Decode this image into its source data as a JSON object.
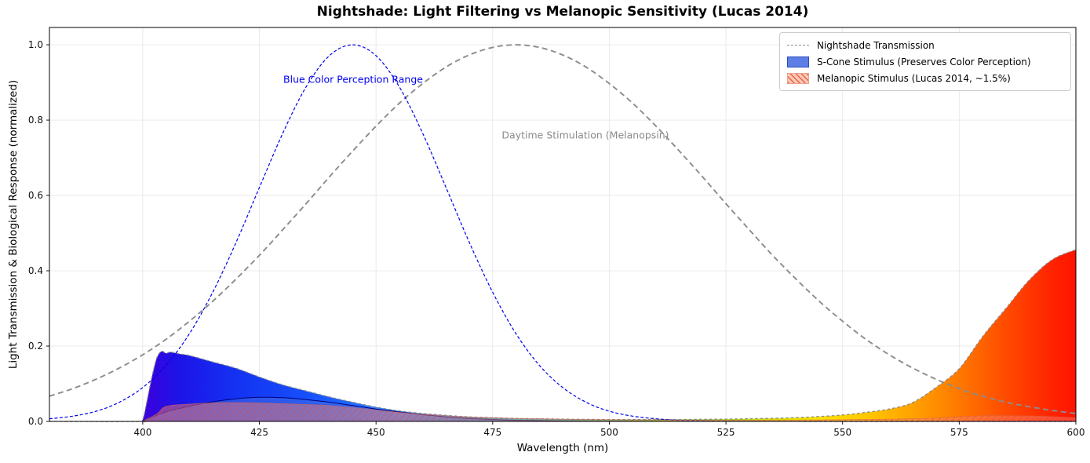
{
  "title": "Nightshade: Light Filtering vs Melanopic Sensitivity (Lucas 2014)",
  "axes": {
    "x_label": "Wavelength (nm)",
    "y_label": "Light Transmission & Biological Response (normalized)",
    "x_ticks": [
      400,
      425,
      450,
      475,
      500,
      525,
      550,
      575,
      600
    ],
    "y_ticks": [
      "0.0",
      "0.2",
      "0.4",
      "0.6",
      "0.8",
      "1.0"
    ],
    "grid": true
  },
  "legend": {
    "position": "upper right",
    "items": [
      {
        "label": "Nightshade Transmission",
        "swatch": "gray-dashed-line",
        "color": "#8c8c8c"
      },
      {
        "label": "S-Cone Stimulus (Preserves Color Perception)",
        "swatch": "blue-filled-patch",
        "color": "#4169e1",
        "edge": "#2b4bbf"
      },
      {
        "label": "Melanopic Stimulus (Lucas 2014, ~1.5%)",
        "swatch": "salmon-hatched-patch",
        "color": "#ffc9b5",
        "hatch": "#e8604c"
      }
    ]
  },
  "annotations": [
    {
      "text": "Blue Color Perception Range",
      "color": "#0000ee",
      "x_nm": 445,
      "y": 0.9
    },
    {
      "text": "Daytime Stimulation (Melanopsin)",
      "color": "#8a8a8a",
      "x_nm": 495,
      "y": 0.76
    }
  ],
  "chart_data": {
    "type": "line",
    "title": "Nightshade: Light Filtering vs Melanopic Sensitivity (Lucas 2014)",
    "xlabel": "Wavelength (nm)",
    "ylabel": "Light Transmission & Biological Response (normalized)",
    "xlim": [
      380,
      600
    ],
    "ylim": [
      0,
      1.046
    ],
    "grid": true,
    "series": [
      {
        "name": "Nightshade Transmission",
        "style": "dashed",
        "color": "#8a8a8a",
        "width": 1.3,
        "dash": "3.5,3",
        "fill": "spectral-gradient",
        "points": [
          [
            380,
            0
          ],
          [
            399,
            0
          ],
          [
            400,
            0.005
          ],
          [
            401,
            0.06
          ],
          [
            402,
            0.12
          ],
          [
            403,
            0.168
          ],
          [
            404,
            0.186
          ],
          [
            405,
            0.181
          ],
          [
            406,
            0.184
          ],
          [
            408,
            0.179
          ],
          [
            410,
            0.175
          ],
          [
            415,
            0.158
          ],
          [
            420,
            0.141
          ],
          [
            425,
            0.118
          ],
          [
            430,
            0.097
          ],
          [
            435,
            0.081
          ],
          [
            440,
            0.065
          ],
          [
            445,
            0.051
          ],
          [
            450,
            0.038
          ],
          [
            455,
            0.028
          ],
          [
            460,
            0.021
          ],
          [
            465,
            0.016
          ],
          [
            470,
            0.012
          ],
          [
            475,
            0.01
          ],
          [
            480,
            0.008
          ],
          [
            485,
            0.007
          ],
          [
            490,
            0.006
          ],
          [
            495,
            0.0055
          ],
          [
            500,
            0.005
          ],
          [
            510,
            0.005
          ],
          [
            520,
            0.0055
          ],
          [
            530,
            0.007
          ],
          [
            540,
            0.01
          ],
          [
            545,
            0.013
          ],
          [
            550,
            0.017
          ],
          [
            555,
            0.024
          ],
          [
            560,
            0.033
          ],
          [
            565,
            0.05
          ],
          [
            570,
            0.09
          ],
          [
            575,
            0.14
          ],
          [
            580,
            0.225
          ],
          [
            585,
            0.3
          ],
          [
            590,
            0.375
          ],
          [
            595,
            0.43
          ],
          [
            600,
            0.456
          ]
        ]
      },
      {
        "name": "S-Cone Sensitivity (Blue Color Perception Range)",
        "style": "dashed",
        "color": "#0000ee",
        "width": 1.2,
        "dash": "4,2.5",
        "points": [
          [
            380,
            0.007
          ],
          [
            385,
            0.014
          ],
          [
            390,
            0.027
          ],
          [
            395,
            0.051
          ],
          [
            400,
            0.09
          ],
          [
            405,
            0.149
          ],
          [
            410,
            0.233
          ],
          [
            415,
            0.343
          ],
          [
            420,
            0.475
          ],
          [
            425,
            0.621
          ],
          [
            430,
            0.765
          ],
          [
            435,
            0.888
          ],
          [
            440,
            0.971
          ],
          [
            445,
            1.0
          ],
          [
            450,
            0.971
          ],
          [
            455,
            0.888
          ],
          [
            460,
            0.765
          ],
          [
            465,
            0.621
          ],
          [
            470,
            0.475
          ],
          [
            475,
            0.343
          ],
          [
            480,
            0.233
          ],
          [
            485,
            0.149
          ],
          [
            490,
            0.09
          ],
          [
            495,
            0.051
          ],
          [
            500,
            0.027
          ],
          [
            505,
            0.014
          ],
          [
            510,
            0.007
          ],
          [
            515,
            0.003
          ],
          [
            520,
            0.0015
          ],
          [
            525,
            0.0007
          ],
          [
            530,
            0.0003
          ],
          [
            545,
            0.0001
          ],
          [
            600,
            0
          ]
        ]
      },
      {
        "name": "Melanopsin Sensitivity (Daytime Stimulation)",
        "style": "dashed",
        "color": "#8c8c8c",
        "width": 1.9,
        "dash": "7,4.5",
        "points": [
          [
            380,
            0.067
          ],
          [
            385,
            0.087
          ],
          [
            390,
            0.112
          ],
          [
            395,
            0.142
          ],
          [
            400,
            0.177
          ],
          [
            405,
            0.218
          ],
          [
            410,
            0.266
          ],
          [
            415,
            0.319
          ],
          [
            420,
            0.378
          ],
          [
            425,
            0.441
          ],
          [
            430,
            0.509
          ],
          [
            435,
            0.578
          ],
          [
            440,
            0.649
          ],
          [
            445,
            0.718
          ],
          [
            450,
            0.784
          ],
          [
            455,
            0.845
          ],
          [
            460,
            0.897
          ],
          [
            465,
            0.941
          ],
          [
            470,
            0.973
          ],
          [
            475,
            0.993
          ],
          [
            480,
            1.0
          ],
          [
            485,
            0.993
          ],
          [
            490,
            0.973
          ],
          [
            495,
            0.941
          ],
          [
            500,
            0.897
          ],
          [
            505,
            0.845
          ],
          [
            510,
            0.784
          ],
          [
            515,
            0.718
          ],
          [
            520,
            0.649
          ],
          [
            525,
            0.578
          ],
          [
            530,
            0.509
          ],
          [
            535,
            0.441
          ],
          [
            540,
            0.378
          ],
          [
            545,
            0.319
          ],
          [
            550,
            0.266
          ],
          [
            555,
            0.218
          ],
          [
            560,
            0.177
          ],
          [
            565,
            0.142
          ],
          [
            570,
            0.112
          ],
          [
            575,
            0.087
          ],
          [
            580,
            0.067
          ],
          [
            585,
            0.051
          ],
          [
            590,
            0.039
          ],
          [
            595,
            0.029
          ],
          [
            600,
            0.021
          ]
        ]
      },
      {
        "name": "S-Cone Stimulus (Preserves Color Perception)",
        "style": "solid",
        "color": "#000080",
        "width": 1.0,
        "fill_color": "#4169e1",
        "fill_opacity": 0.55,
        "points": [
          [
            400,
            0.001
          ],
          [
            405,
            0.025
          ],
          [
            410,
            0.04
          ],
          [
            415,
            0.052
          ],
          [
            420,
            0.06
          ],
          [
            425,
            0.064
          ],
          [
            430,
            0.063
          ],
          [
            435,
            0.058
          ],
          [
            440,
            0.051
          ],
          [
            445,
            0.042
          ],
          [
            450,
            0.033
          ],
          [
            455,
            0.025
          ],
          [
            460,
            0.018
          ],
          [
            465,
            0.012
          ],
          [
            470,
            0.008
          ],
          [
            475,
            0.005
          ],
          [
            480,
            0.003
          ],
          [
            485,
            0.002
          ],
          [
            490,
            0.001
          ],
          [
            500,
            0.0005
          ],
          [
            510,
            0
          ]
        ]
      },
      {
        "name": "Melanopic Stimulus (Lucas 2014, ~1.5%)",
        "style": "solid",
        "color": "#d9604f",
        "width": 0.7,
        "fill_color": "#fa8072",
        "fill_opacity": 0.45,
        "hatched": true,
        "points": [
          [
            400,
            0.001
          ],
          [
            403,
            0.02
          ],
          [
            405,
            0.04
          ],
          [
            410,
            0.046
          ],
          [
            415,
            0.049
          ],
          [
            420,
            0.05
          ],
          [
            425,
            0.049
          ],
          [
            430,
            0.047
          ],
          [
            435,
            0.045
          ],
          [
            440,
            0.042
          ],
          [
            445,
            0.037
          ],
          [
            450,
            0.03
          ],
          [
            455,
            0.024
          ],
          [
            460,
            0.019
          ],
          [
            465,
            0.015
          ],
          [
            470,
            0.012
          ],
          [
            475,
            0.01
          ],
          [
            480,
            0.008
          ],
          [
            485,
            0.007
          ],
          [
            490,
            0.006
          ],
          [
            495,
            0.005
          ],
          [
            500,
            0.0045
          ],
          [
            510,
            0.004
          ],
          [
            520,
            0.0036
          ],
          [
            530,
            0.0036
          ],
          [
            540,
            0.0038
          ],
          [
            550,
            0.0045
          ],
          [
            555,
            0.0052
          ],
          [
            560,
            0.006
          ],
          [
            565,
            0.007
          ],
          [
            570,
            0.009
          ],
          [
            575,
            0.0122
          ],
          [
            580,
            0.0151
          ],
          [
            585,
            0.0153
          ],
          [
            590,
            0.0146
          ],
          [
            595,
            0.0125
          ],
          [
            600,
            0.0096
          ]
        ]
      }
    ],
    "spectral_gradient": [
      [
        400,
        "#3c00dc"
      ],
      [
        408,
        "#1c14e8"
      ],
      [
        420,
        "#1432f2"
      ],
      [
        435,
        "#1650fa"
      ],
      [
        445,
        "#2069ff"
      ],
      [
        455,
        "#3c8cff"
      ],
      [
        470,
        "#00b4e6"
      ],
      [
        490,
        "#00dcb4"
      ],
      [
        510,
        "#46e61e"
      ],
      [
        530,
        "#c8e600"
      ],
      [
        545,
        "#ffe100"
      ],
      [
        555,
        "#ffc800"
      ],
      [
        565,
        "#ffa200"
      ],
      [
        575,
        "#ff7800"
      ],
      [
        585,
        "#ff4b00"
      ],
      [
        595,
        "#ff2300"
      ],
      [
        600,
        "#ff1400"
      ]
    ],
    "colors": {
      "grid": "#e8e8e8",
      "spine": "#000000",
      "tick_label": "#111111",
      "hatch_stroke": "#d84a3a"
    }
  }
}
